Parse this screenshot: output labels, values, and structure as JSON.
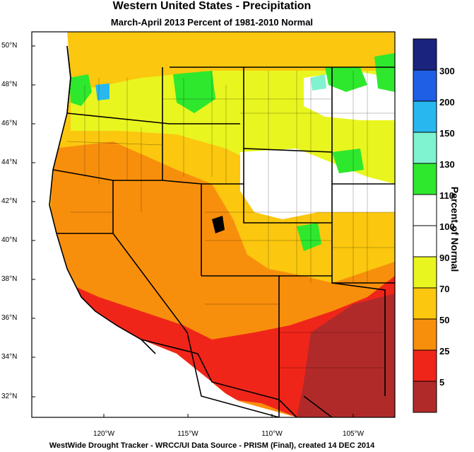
{
  "title": "Western United States - Precipitation",
  "subtitle": "March-April 2013  Percent of 1981-2010 Normal",
  "footer": "WestWide Drought Tracker - WRCC/UI  Data Source - PRISM (Final), created 14 DEC 2014",
  "colorbar": {
    "title": "Percent of Normal",
    "labels": [
      "300",
      "200",
      "150",
      "130",
      "110",
      "100",
      "90",
      "70",
      "50",
      "25",
      "5"
    ],
    "colors": [
      "#1a237e",
      "#1e5fe6",
      "#28b8ef",
      "#7ff2cf",
      "#2ee82e",
      "#ffffff",
      "#ffffff",
      "#e9f51f",
      "#fbc70f",
      "#f88f0c",
      "#f0251a",
      "#b12a2a"
    ]
  },
  "axes": {
    "lat_labels": [
      "50°N",
      "48°N",
      "46°N",
      "44°N",
      "42°N",
      "40°N",
      "38°N",
      "36°N",
      "34°N",
      "32°N"
    ],
    "lon_labels": [
      "120°W",
      "115°W",
      "110°W",
      "105°W"
    ]
  }
}
